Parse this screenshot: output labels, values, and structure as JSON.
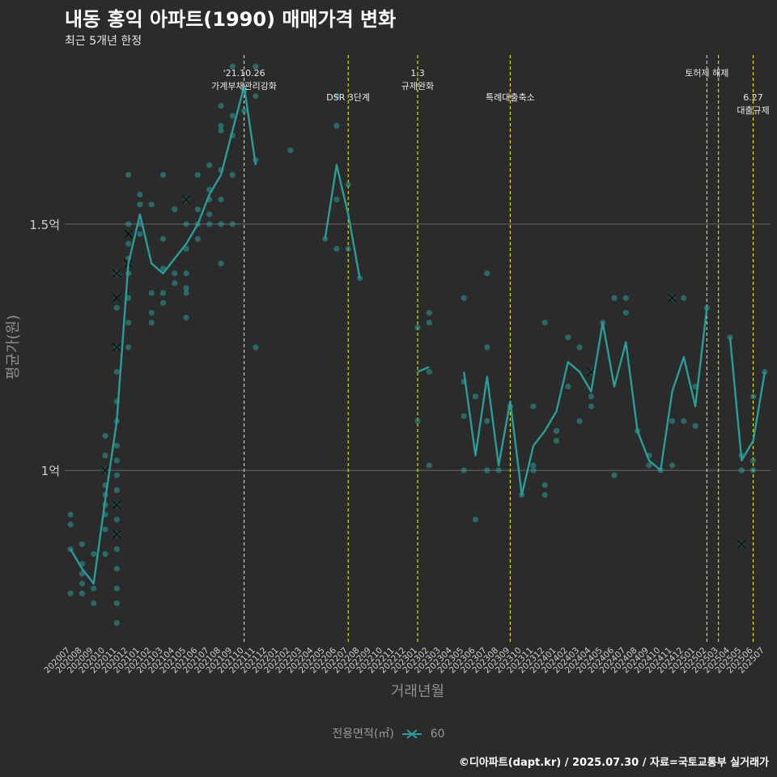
{
  "title": "내동 홍익 아파트(1990) 매매가격 변화",
  "subtitle": "최근 5개년 한정",
  "caption": "©디아파트(dapt.kr) / 2025.07.30 / 자료=국토교통부 실거래가",
  "legend": {
    "title": "전용면적(㎡)",
    "label": "60"
  },
  "colors": {
    "series": "#2a9d9a",
    "vline": "#ffff00",
    "grid": "#6a6a6a",
    "background": "#2b2b2b",
    "text": "#cfcfcf"
  },
  "chart_data": {
    "type": "line",
    "xlabel": "거래년월",
    "ylabel": "평균가(원)",
    "ylim": [
      0.65,
      1.85
    ],
    "yticks": [
      {
        "value": 1.0,
        "label": "1억"
      },
      {
        "value": 1.5,
        "label": "1.5억"
      }
    ],
    "categories": [
      "202007",
      "202008",
      "202009",
      "202010",
      "202011",
      "202012",
      "202101",
      "202102",
      "202103",
      "202104",
      "202105",
      "202106",
      "202107",
      "202108",
      "202109",
      "202110",
      "202111",
      "202112",
      "202201",
      "202202",
      "202203",
      "202204",
      "202205",
      "202206",
      "202207",
      "202208",
      "202209",
      "202210",
      "202211",
      "202212",
      "202301",
      "202302",
      "202303",
      "202304",
      "202305",
      "202306",
      "202307",
      "202308",
      "202309",
      "202310",
      "202311",
      "202312",
      "202401",
      "202402",
      "202403",
      "202404",
      "202405",
      "202406",
      "202407",
      "202408",
      "202409",
      "202410",
      "202411",
      "202412",
      "202501",
      "202502",
      "202503",
      "202504",
      "202505",
      "202506",
      "202507"
    ],
    "series": [
      {
        "name": "60",
        "values": [
          0.84,
          0.8,
          0.77,
          0.94,
          1.1,
          1.42,
          1.52,
          1.42,
          1.4,
          1.43,
          1.46,
          1.5,
          1.56,
          1.6,
          1.69,
          1.78,
          1.62,
          null,
          null,
          null,
          null,
          null,
          1.47,
          1.62,
          1.52,
          1.39,
          null,
          null,
          null,
          null,
          1.2,
          1.21,
          null,
          null,
          1.2,
          1.03,
          1.19,
          1.01,
          1.14,
          0.95,
          1.05,
          1.08,
          1.12,
          1.22,
          1.2,
          1.16,
          1.3,
          1.17,
          1.26,
          1.08,
          1.02,
          1.0,
          1.16,
          1.23,
          1.13,
          1.33,
          null,
          1.27,
          1.02,
          1.06,
          1.2
        ]
      }
    ],
    "points": [
      [
        0,
        0.91
      ],
      [
        0,
        0.89
      ],
      [
        0,
        0.84
      ],
      [
        0,
        0.75
      ],
      [
        1,
        0.85
      ],
      [
        1,
        0.81
      ],
      [
        1,
        0.79
      ],
      [
        1,
        0.77
      ],
      [
        1,
        0.75
      ],
      [
        2,
        0.83
      ],
      [
        2,
        0.76
      ],
      [
        2,
        0.73
      ],
      [
        3,
        1.07
      ],
      [
        3,
        1.03
      ],
      [
        3,
        1.0
      ],
      [
        3,
        0.97
      ],
      [
        3,
        0.95
      ],
      [
        3,
        0.93
      ],
      [
        3,
        0.91
      ],
      [
        3,
        0.88
      ],
      [
        3,
        0.83
      ],
      [
        4,
        1.14
      ],
      [
        4,
        1.1
      ],
      [
        4,
        1.05
      ],
      [
        4,
        1.02
      ],
      [
        4,
        0.99
      ],
      [
        4,
        0.96
      ],
      [
        4,
        0.93
      ],
      [
        4,
        0.9
      ],
      [
        4,
        0.87
      ],
      [
        4,
        0.84
      ],
      [
        4,
        0.8
      ],
      [
        4,
        0.76
      ],
      [
        4,
        0.73
      ],
      [
        4,
        0.69
      ],
      [
        4,
        1.2
      ],
      [
        4,
        1.25
      ],
      [
        4,
        1.33
      ],
      [
        4,
        1.4
      ],
      [
        5,
        1.6
      ],
      [
        5,
        1.5
      ],
      [
        5,
        1.46
      ],
      [
        5,
        1.43
      ],
      [
        5,
        1.4
      ],
      [
        5,
        1.35
      ],
      [
        5,
        1.3
      ],
      [
        5,
        1.25
      ],
      [
        6,
        1.56
      ],
      [
        6,
        1.54
      ],
      [
        6,
        1.5
      ],
      [
        6,
        1.48
      ],
      [
        7,
        1.54
      ],
      [
        7,
        1.36
      ],
      [
        7,
        1.32
      ],
      [
        7,
        1.3
      ],
      [
        8,
        1.6
      ],
      [
        8,
        1.47
      ],
      [
        8,
        1.41
      ],
      [
        8,
        1.36
      ],
      [
        8,
        1.34
      ],
      [
        9,
        1.53
      ],
      [
        9,
        1.4
      ],
      [
        9,
        1.38
      ],
      [
        10,
        1.55
      ],
      [
        10,
        1.5
      ],
      [
        10,
        1.45
      ],
      [
        10,
        1.4
      ],
      [
        10,
        1.37
      ],
      [
        10,
        1.36
      ],
      [
        10,
        1.31
      ],
      [
        11,
        1.6
      ],
      [
        11,
        1.53
      ],
      [
        11,
        1.5
      ],
      [
        11,
        1.47
      ],
      [
        12,
        1.62
      ],
      [
        12,
        1.57
      ],
      [
        12,
        1.55
      ],
      [
        12,
        1.52
      ],
      [
        12,
        1.5
      ],
      [
        13,
        1.74
      ],
      [
        13,
        1.7
      ],
      [
        13,
        1.69
      ],
      [
        13,
        1.61
      ],
      [
        13,
        1.55
      ],
      [
        13,
        1.5
      ],
      [
        13,
        1.42
      ],
      [
        14,
        1.82
      ],
      [
        14,
        1.72
      ],
      [
        14,
        1.68
      ],
      [
        14,
        1.6
      ],
      [
        14,
        1.5
      ],
      [
        15,
        1.77
      ],
      [
        15,
        1.73
      ],
      [
        16,
        1.82
      ],
      [
        16,
        1.76
      ],
      [
        16,
        1.63
      ],
      [
        16,
        1.25
      ],
      [
        19,
        1.65
      ],
      [
        22,
        1.47
      ],
      [
        23,
        1.76
      ],
      [
        23,
        1.7
      ],
      [
        23,
        1.55
      ],
      [
        23,
        1.45
      ],
      [
        24,
        1.58
      ],
      [
        24,
        1.45
      ],
      [
        25,
        1.39
      ],
      [
        30,
        1.29
      ],
      [
        30,
        1.1
      ],
      [
        31,
        1.32
      ],
      [
        31,
        1.3
      ],
      [
        31,
        1.2
      ],
      [
        31,
        1.01
      ],
      [
        34,
        1.35
      ],
      [
        34,
        1.18
      ],
      [
        34,
        1.11
      ],
      [
        34,
        1.0
      ],
      [
        35,
        1.15
      ],
      [
        35,
        0.9
      ],
      [
        36,
        1.4
      ],
      [
        36,
        1.25
      ],
      [
        36,
        1.1
      ],
      [
        36,
        1.0
      ],
      [
        37,
        1.0
      ],
      [
        38,
        1.13
      ],
      [
        39,
        0.95
      ],
      [
        40,
        1.13
      ],
      [
        40,
        1.01
      ],
      [
        40,
        1.0
      ],
      [
        41,
        1.3
      ],
      [
        41,
        0.97
      ],
      [
        41,
        0.95
      ],
      [
        42,
        1.08
      ],
      [
        42,
        1.06
      ],
      [
        43,
        1.27
      ],
      [
        43,
        1.17
      ],
      [
        44,
        1.25
      ],
      [
        44,
        1.1
      ],
      [
        45,
        1.2
      ],
      [
        45,
        1.15
      ],
      [
        45,
        1.13
      ],
      [
        46,
        1.3
      ],
      [
        47,
        1.35
      ],
      [
        47,
        0.99
      ],
      [
        48,
        1.35
      ],
      [
        48,
        1.32
      ],
      [
        49,
        1.08
      ],
      [
        50,
        1.03
      ],
      [
        50,
        1.01
      ],
      [
        51,
        1.0
      ],
      [
        52,
        1.35
      ],
      [
        52,
        1.1
      ],
      [
        52,
        1.01
      ],
      [
        53,
        1.35
      ],
      [
        53,
        1.1
      ],
      [
        54,
        1.17
      ],
      [
        54,
        1.09
      ],
      [
        55,
        1.33
      ],
      [
        57,
        1.27
      ],
      [
        58,
        1.03
      ],
      [
        58,
        1.0
      ],
      [
        58,
        0.85
      ],
      [
        59,
        1.15
      ],
      [
        59,
        1.02
      ],
      [
        59,
        1.0
      ],
      [
        60,
        1.2
      ]
    ],
    "crosses": [
      [
        3,
        1.0
      ],
      [
        4,
        1.4
      ],
      [
        4,
        1.35
      ],
      [
        4,
        1.25
      ],
      [
        4,
        0.93
      ],
      [
        4,
        0.87
      ],
      [
        5,
        1.48
      ],
      [
        5,
        1.42
      ],
      [
        10,
        1.55
      ],
      [
        45,
        1.2
      ],
      [
        52,
        1.35
      ],
      [
        58,
        0.85
      ]
    ],
    "annotations": [
      {
        "x": 15.0,
        "lines": [
          "'21.10.26",
          "가계부채관리강화"
        ],
        "row": 0
      },
      {
        "x": 24.0,
        "lines": [
          "DSR 3단계"
        ],
        "row": 1
      },
      {
        "x": 30.0,
        "lines": [
          "1.3",
          "규제완화"
        ],
        "row": 0
      },
      {
        "x": 38.0,
        "lines": [
          "특례대출축소"
        ],
        "row": 1
      },
      {
        "x": 55.0,
        "lines": [
          "토허제 해제"
        ],
        "row": 0
      },
      {
        "x": 56.0,
        "lines": [],
        "row": 0
      },
      {
        "x": 59.0,
        "lines": [
          "6.27",
          "대출규제"
        ],
        "row": 1
      }
    ]
  }
}
